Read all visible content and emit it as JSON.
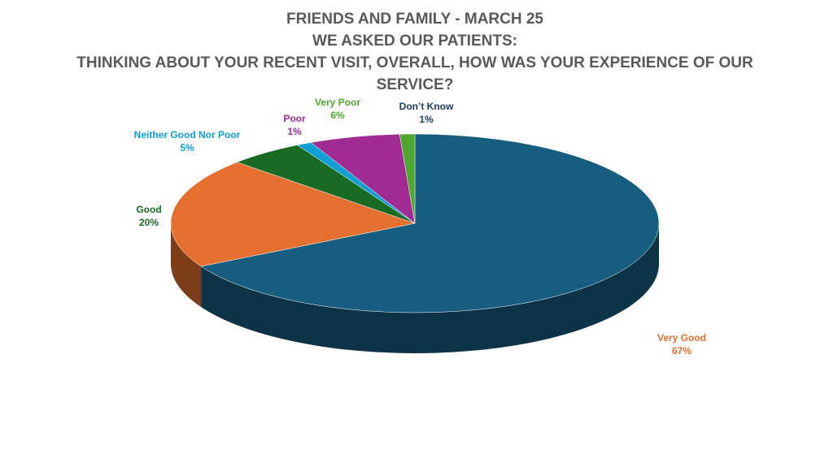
{
  "chart_data": {
    "type": "pie3d",
    "title": [
      "FRIENDS AND FAMILY - MARCH 25",
      "WE ASKED OUR PATIENTS:",
      "THINKING ABOUT YOUR RECENT VISIT, OVERALL, HOW WAS YOUR EXPERIENCE OF OUR SERVICE?"
    ],
    "categories": [
      "Very Good",
      "Good",
      "Neither Good Nor Poor",
      "Poor",
      "Very Poor",
      "Don’t Know"
    ],
    "values": [
      67,
      20,
      5,
      1,
      6,
      1
    ],
    "value_labels": [
      "67%",
      "20%",
      "5%",
      "1%",
      "6%",
      "1%"
    ],
    "colors": [
      "#175d80",
      "#e46f2e",
      "#196b24",
      "#0f9ed5",
      "#a02b93",
      "#4ea72e"
    ],
    "label_colors": [
      "#e46f2e",
      "#196b24",
      "#0f9ed5",
      "#a02b93",
      "#4ea72e",
      "#1a3a5a"
    ]
  }
}
